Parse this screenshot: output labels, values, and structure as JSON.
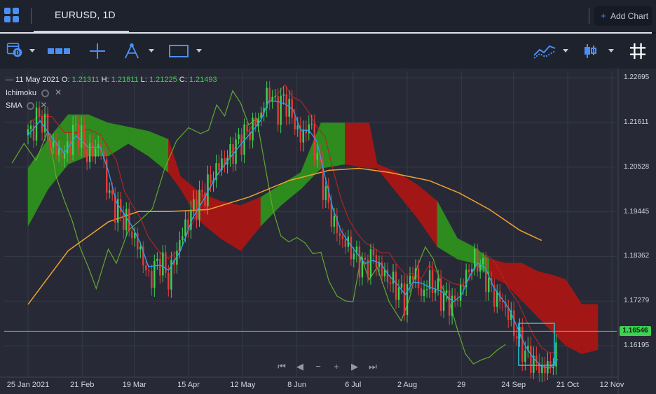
{
  "header": {
    "symbol_tab": "EURUSD, 1D",
    "add_chart": "Add Chart",
    "add_chart_plus": "+"
  },
  "toolbar": {
    "icons": [
      "calendar-icon",
      "range-icon",
      "crosshair-icon",
      "draw-tool-icon",
      "rectangle-icon",
      "line-chart-icon",
      "candlestick-icon",
      "grid-icon"
    ]
  },
  "legend": {
    "date": "11 May 2021",
    "o_label": "O:",
    "o": "1.21311",
    "h_label": "H:",
    "h": "1.21811",
    "l_label": "L:",
    "l": "1.21225",
    "c_label": "C:",
    "c": "1.21493",
    "indicators": [
      "Ichimoku",
      "SMA"
    ]
  },
  "price_tag": "1.16546",
  "navigation": [
    "⏮",
    "◀",
    "−",
    "+",
    "▶",
    "⏭"
  ],
  "colors": {
    "background": "#272a36",
    "grid": "#363a45",
    "bull": "#3fd152",
    "bear": "#e33b3b",
    "cloud_bull": "#2e8b1e",
    "cloud_bear": "#a31616",
    "tenkan": "#29a3f0",
    "kijun": "#b82222",
    "chikou": "#62a831",
    "sma": "#f0a030",
    "highlight_box": "#26c6da",
    "last_price_line": "#3fd152"
  },
  "chart_data": {
    "type": "candlestick",
    "symbol": "EURUSD",
    "timeframe": "1D",
    "y_ticks": [
      1.22695,
      1.21611,
      1.20528,
      1.19445,
      1.18362,
      1.17279,
      1.16195
    ],
    "ylim": [
      1.1545,
      1.2285
    ],
    "x_ticks": [
      {
        "label": "25 Jan 2021",
        "day": 0
      },
      {
        "label": "21 Feb",
        "day": 27
      },
      {
        "label": "19 Mar",
        "day": 53
      },
      {
        "label": "15 Apr",
        "day": 80
      },
      {
        "label": "12 May",
        "day": 107
      },
      {
        "label": "8 Jun",
        "day": 134
      },
      {
        "label": "6 Jul",
        "day": 162
      },
      {
        "label": "2 Aug",
        "day": 189
      },
      {
        "label": "29",
        "day": 216
      },
      {
        "label": "24 Sep",
        "day": 242
      },
      {
        "label": "21 Oct",
        "day": 269
      },
      {
        "label": "12 Nov",
        "day": 291
      }
    ],
    "last_price": 1.16546,
    "close_path": [
      [
        0,
        1.213
      ],
      [
        6,
        1.218
      ],
      [
        12,
        1.21
      ],
      [
        18,
        1.208
      ],
      [
        24,
        1.215
      ],
      [
        30,
        1.208
      ],
      [
        36,
        1.211
      ],
      [
        40,
        1.199
      ],
      [
        44,
        1.195
      ],
      [
        48,
        1.193
      ],
      [
        52,
        1.189
      ],
      [
        56,
        1.185
      ],
      [
        60,
        1.178
      ],
      [
        66,
        1.183
      ],
      [
        70,
        1.178
      ],
      [
        76,
        1.188
      ],
      [
        82,
        1.195
      ],
      [
        88,
        1.199
      ],
      [
        94,
        1.205
      ],
      [
        100,
        1.208
      ],
      [
        106,
        1.212
      ],
      [
        112,
        1.215
      ],
      [
        116,
        1.218
      ],
      [
        120,
        1.224
      ],
      [
        124,
        1.219
      ],
      [
        128,
        1.222
      ],
      [
        132,
        1.217
      ],
      [
        136,
        1.212
      ],
      [
        140,
        1.216
      ],
      [
        144,
        1.208
      ],
      [
        148,
        1.199
      ],
      [
        152,
        1.192
      ],
      [
        156,
        1.188
      ],
      [
        160,
        1.186
      ],
      [
        164,
        1.183
      ],
      [
        168,
        1.181
      ],
      [
        172,
        1.184
      ],
      [
        176,
        1.18
      ],
      [
        180,
        1.178
      ],
      [
        184,
        1.176
      ],
      [
        188,
        1.173
      ],
      [
        192,
        1.181
      ],
      [
        196,
        1.174
      ],
      [
        200,
        1.178
      ],
      [
        206,
        1.174
      ],
      [
        212,
        1.172
      ],
      [
        216,
        1.176
      ],
      [
        220,
        1.181
      ],
      [
        224,
        1.183
      ],
      [
        228,
        1.179
      ],
      [
        232,
        1.174
      ],
      [
        236,
        1.173
      ],
      [
        240,
        1.169
      ],
      [
        244,
        1.164
      ],
      [
        248,
        1.16
      ],
      [
        252,
        1.158
      ],
      [
        256,
        1.156
      ],
      [
        260,
        1.157
      ],
      [
        264,
        1.16
      ]
    ],
    "sma": [
      [
        0,
        1.172
      ],
      [
        20,
        1.185
      ],
      [
        40,
        1.192
      ],
      [
        55,
        1.1945
      ],
      [
        70,
        1.1945
      ],
      [
        90,
        1.195
      ],
      [
        110,
        1.198
      ],
      [
        130,
        1.202
      ],
      [
        150,
        1.2045
      ],
      [
        165,
        1.205
      ],
      [
        180,
        1.204
      ],
      [
        200,
        1.202
      ],
      [
        215,
        1.199
      ],
      [
        230,
        1.195
      ],
      [
        245,
        1.19
      ],
      [
        256,
        1.1875
      ]
    ],
    "cloud_top": [
      [
        0,
        1.205
      ],
      [
        10,
        1.212
      ],
      [
        20,
        1.218
      ],
      [
        30,
        1.218
      ],
      [
        40,
        1.216
      ],
      [
        50,
        1.215
      ],
      [
        60,
        1.214
      ],
      [
        70,
        1.212
      ],
      [
        76,
        1.203
      ],
      [
        86,
        1.199
      ],
      [
        96,
        1.197
      ],
      [
        106,
        1.196
      ],
      [
        116,
        1.198
      ],
      [
        126,
        1.201
      ],
      [
        136,
        1.204
      ],
      [
        146,
        1.216
      ],
      [
        158,
        1.216
      ],
      [
        170,
        1.216
      ],
      [
        174,
        1.206
      ],
      [
        184,
        1.204
      ],
      [
        194,
        1.201
      ],
      [
        204,
        1.197
      ],
      [
        214,
        1.188
      ],
      [
        222,
        1.186
      ],
      [
        230,
        1.183
      ],
      [
        238,
        1.182
      ],
      [
        246,
        1.182
      ],
      [
        254,
        1.18
      ],
      [
        262,
        1.179
      ],
      [
        268,
        1.178
      ],
      [
        276,
        1.172
      ],
      [
        284,
        1.172
      ]
    ],
    "cloud_bottom": [
      [
        0,
        1.191
      ],
      [
        10,
        1.2
      ],
      [
        20,
        1.206
      ],
      [
        30,
        1.208
      ],
      [
        40,
        1.208
      ],
      [
        50,
        1.211
      ],
      [
        60,
        1.208
      ],
      [
        70,
        1.204
      ],
      [
        76,
        1.2
      ],
      [
        86,
        1.192
      ],
      [
        96,
        1.188
      ],
      [
        106,
        1.185
      ],
      [
        116,
        1.191
      ],
      [
        126,
        1.196
      ],
      [
        136,
        1.2
      ],
      [
        146,
        1.205
      ],
      [
        158,
        1.206
      ],
      [
        170,
        1.205
      ],
      [
        174,
        1.205
      ],
      [
        184,
        1.199
      ],
      [
        194,
        1.193
      ],
      [
        204,
        1.186
      ],
      [
        214,
        1.183
      ],
      [
        222,
        1.182
      ],
      [
        230,
        1.179
      ],
      [
        238,
        1.177
      ],
      [
        246,
        1.173
      ],
      [
        254,
        1.169
      ],
      [
        262,
        1.165
      ],
      [
        268,
        1.162
      ],
      [
        276,
        1.16
      ],
      [
        284,
        1.161
      ]
    ]
  }
}
